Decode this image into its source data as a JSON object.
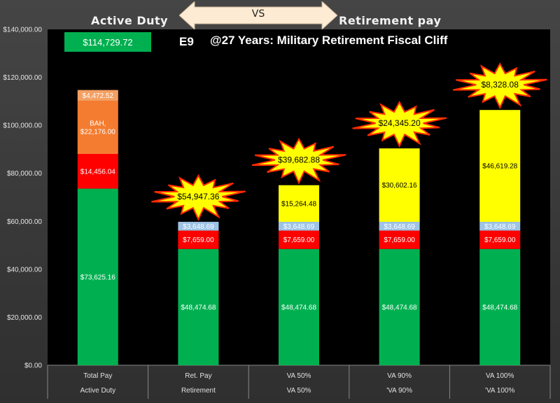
{
  "header": {
    "left_label": "Active Duty",
    "vs_label": "VS",
    "right_label": "Retirement pay",
    "total_box": "$114,729.72",
    "rank": "E9",
    "title": "@27 Years: Military Retirement Fiscal Cliff"
  },
  "colors": {
    "green": "#00b050",
    "red": "#ff0000",
    "light_blue": "#9dc3e6",
    "yellow": "#ffff00",
    "orange": "#f47c30",
    "light_orange": "#f4a063",
    "star": "#ffff00",
    "star_outline": "#ff2a00"
  },
  "chart_data": {
    "type": "bar",
    "stacked": true,
    "title": "@27 Years: Military Retirement Fiscal Cliff",
    "ylim": [
      0,
      140000
    ],
    "y_ticks": [
      0,
      20000,
      40000,
      60000,
      80000,
      100000,
      120000,
      140000
    ],
    "y_tick_labels": [
      "$0.00",
      "$20,000.00",
      "$40,000.00",
      "$60,000.00",
      "$80,000.00",
      "$100,000.00",
      "$120,000.00",
      "$140,000.00"
    ],
    "grid": false,
    "categories_row1": [
      "Total Pay",
      "Ret. Pay",
      "VA 50%",
      "VA 90%",
      "VA 100%"
    ],
    "categories_row2": [
      "Active Duty",
      "Retirement",
      "VA 50%",
      "'VA 90%",
      "'VA 100%"
    ],
    "bars": [
      {
        "segments": [
          {
            "value": 73625.16,
            "label": "$73,625.16",
            "color": "green"
          },
          {
            "value": 14456.04,
            "label": "$14,456.04",
            "color": "red"
          },
          {
            "value": 22176.0,
            "label": "BAH,\n$22,176.00",
            "color": "orange"
          },
          {
            "value": 4472.52,
            "label": "$4,472.52",
            "color": "light_orange"
          }
        ],
        "callout": ""
      },
      {
        "segments": [
          {
            "value": 48474.68,
            "label": "$48,474.68",
            "color": "green"
          },
          {
            "value": 7659.0,
            "label": "$7,659.00",
            "color": "red"
          },
          {
            "value": 3648.69,
            "label": "$3,648.69",
            "color": "light_blue"
          }
        ],
        "callout": "$54,947.36"
      },
      {
        "segments": [
          {
            "value": 48474.68,
            "label": "$48,474.68",
            "color": "green"
          },
          {
            "value": 7659.0,
            "label": "$7,659.00",
            "color": "red"
          },
          {
            "value": 3648.69,
            "label": "$3,648.69",
            "color": "light_blue"
          },
          {
            "value": 15264.48,
            "label": "$15,264.48",
            "color": "yellow"
          }
        ],
        "callout": "$39,682.88"
      },
      {
        "segments": [
          {
            "value": 48474.68,
            "label": "$48,474.68",
            "color": "green"
          },
          {
            "value": 7659.0,
            "label": "$7,659.00",
            "color": "red"
          },
          {
            "value": 3648.69,
            "label": "$3,648.69",
            "color": "light_blue"
          },
          {
            "value": 30602.16,
            "label": "$30,602.16",
            "color": "yellow"
          }
        ],
        "callout": "$24,345.20"
      },
      {
        "segments": [
          {
            "value": 48474.68,
            "label": "$48,474.68",
            "color": "green"
          },
          {
            "value": 7659.0,
            "label": "$7,659.00",
            "color": "red"
          },
          {
            "value": 3648.69,
            "label": "$3,648.69",
            "color": "light_blue"
          },
          {
            "value": 46619.28,
            "label": "$46,619.28",
            "color": "yellow"
          }
        ],
        "callout": "$8,328.08"
      }
    ]
  }
}
